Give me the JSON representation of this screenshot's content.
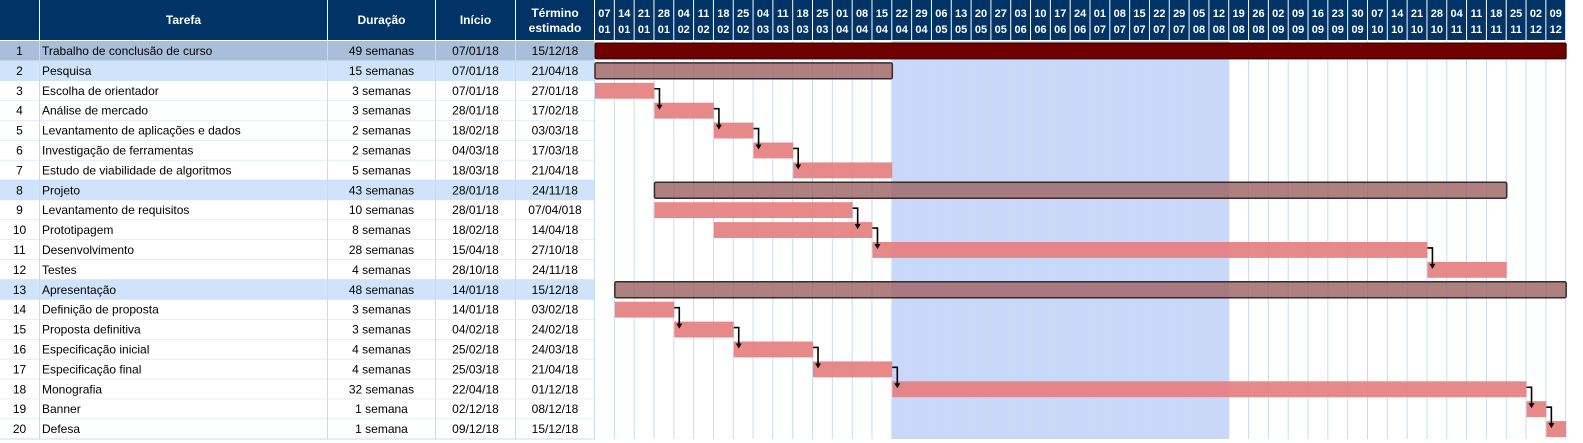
{
  "colors": {
    "header_bg": "#003366",
    "row_sel": "#a9bfd9",
    "row_summary": "#cfe3fa",
    "row_border": "#c9dcef",
    "grid_line": "#c7dcf0",
    "highlight": "#c9d8f9",
    "bar_task": "#e67f7f",
    "bar_summary": "#a06a6a",
    "bar_root": "#700000",
    "bar_outline": "#3b2a2a"
  },
  "headers": {
    "num": "",
    "task": "Tarefa",
    "duration": "Duração",
    "start": "Início",
    "end_line1": "Término",
    "end_line2": "estimado"
  },
  "rows": [
    {
      "id": "1",
      "name": "Trabalho de conclusão de curso",
      "duration": "49 semanas",
      "start": "07/01/18",
      "end": "15/12/18",
      "kind": "root"
    },
    {
      "id": "2",
      "name": "Pesquisa",
      "duration": "15 semanas",
      "start": "07/01/18",
      "end": "21/04/18",
      "kind": "summary"
    },
    {
      "id": "3",
      "name": "Escolha de orientador",
      "duration": "3 semanas",
      "start": "07/01/18",
      "end": "27/01/18",
      "kind": "task"
    },
    {
      "id": "4",
      "name": "Análise de mercado",
      "duration": "3 semanas",
      "start": "28/01/18",
      "end": "17/02/18",
      "kind": "task"
    },
    {
      "id": "5",
      "name": "Levantamento de aplicações e dados",
      "duration": "2 semanas",
      "start": "18/02/18",
      "end": "03/03/18",
      "kind": "task"
    },
    {
      "id": "6",
      "name": "Investigação de ferramentas",
      "duration": "2 semanas",
      "start": "04/03/18",
      "end": "17/03/18",
      "kind": "task"
    },
    {
      "id": "7",
      "name": "Estudo de viabilidade de algoritmos",
      "duration": "5 semanas",
      "start": "18/03/18",
      "end": "21/04/18",
      "kind": "task"
    },
    {
      "id": "8",
      "name": "Projeto",
      "duration": "43 semanas",
      "start": "28/01/18",
      "end": "24/11/18",
      "kind": "summary"
    },
    {
      "id": "9",
      "name": "Levantamento de requisitos",
      "duration": "10 semanas",
      "start": "28/01/18",
      "end": "07/04/018",
      "kind": "task"
    },
    {
      "id": "10",
      "name": "Prototipagem",
      "duration": "8 semanas",
      "start": "18/02/18",
      "end": "14/04/18",
      "kind": "task"
    },
    {
      "id": "11",
      "name": "Desenvolvimento",
      "duration": "28 semanas",
      "start": "15/04/18",
      "end": "27/10/18",
      "kind": "task"
    },
    {
      "id": "12",
      "name": "Testes",
      "duration": "4 semanas",
      "start": "28/10/18",
      "end": "24/11/18",
      "kind": "task"
    },
    {
      "id": "13",
      "name": "Apresentação",
      "duration": "48 semanas",
      "start": "14/01/18",
      "end": "15/12/18",
      "kind": "summary"
    },
    {
      "id": "14",
      "name": "Definição de proposta",
      "duration": "3 semanas",
      "start": "14/01/18",
      "end": "03/02/18",
      "kind": "task"
    },
    {
      "id": "15",
      "name": "Proposta definitiva",
      "duration": "3 semanas",
      "start": "04/02/18",
      "end": "24/02/18",
      "kind": "task"
    },
    {
      "id": "16",
      "name": "Especificação inicial",
      "duration": "4 semanas",
      "start": "25/02/18",
      "end": "24/03/18",
      "kind": "task"
    },
    {
      "id": "17",
      "name": "Especificação final",
      "duration": "4 semanas",
      "start": "25/03/18",
      "end": "21/04/18",
      "kind": "task"
    },
    {
      "id": "18",
      "name": "Monografia",
      "duration": "32 semanas",
      "start": "22/04/18",
      "end": "01/12/18",
      "kind": "task"
    },
    {
      "id": "19",
      "name": "Banner",
      "duration": "1 semana",
      "start": "02/12/18",
      "end": "08/12/18",
      "kind": "task"
    },
    {
      "id": "20",
      "name": "Defesa",
      "duration": "1 semana",
      "start": "09/12/18",
      "end": "15/12/18",
      "kind": "task"
    }
  ],
  "chart_data": {
    "type": "gantt",
    "x_ticks": [
      [
        "07",
        "01"
      ],
      [
        "14",
        "01"
      ],
      [
        "21",
        "01"
      ],
      [
        "28",
        "01"
      ],
      [
        "04",
        "02"
      ],
      [
        "11",
        "02"
      ],
      [
        "18",
        "02"
      ],
      [
        "25",
        "02"
      ],
      [
        "04",
        "03"
      ],
      [
        "11",
        "03"
      ],
      [
        "18",
        "03"
      ],
      [
        "25",
        "03"
      ],
      [
        "01",
        "04"
      ],
      [
        "08",
        "04"
      ],
      [
        "15",
        "04"
      ],
      [
        "22",
        "04"
      ],
      [
        "29",
        "04"
      ],
      [
        "06",
        "05"
      ],
      [
        "13",
        "05"
      ],
      [
        "20",
        "05"
      ],
      [
        "27",
        "05"
      ],
      [
        "03",
        "06"
      ],
      [
        "10",
        "06"
      ],
      [
        "17",
        "06"
      ],
      [
        "24",
        "06"
      ],
      [
        "01",
        "07"
      ],
      [
        "08",
        "07"
      ],
      [
        "15",
        "07"
      ],
      [
        "22",
        "07"
      ],
      [
        "29",
        "07"
      ],
      [
        "05",
        "08"
      ],
      [
        "12",
        "08"
      ],
      [
        "19",
        "08"
      ],
      [
        "26",
        "08"
      ],
      [
        "02",
        "09"
      ],
      [
        "09",
        "09"
      ],
      [
        "16",
        "09"
      ],
      [
        "23",
        "09"
      ],
      [
        "30",
        "09"
      ],
      [
        "07",
        "10"
      ],
      [
        "14",
        "10"
      ],
      [
        "21",
        "10"
      ],
      [
        "28",
        "10"
      ],
      [
        "04",
        "11"
      ],
      [
        "11",
        "11"
      ],
      [
        "18",
        "11"
      ],
      [
        "25",
        "11"
      ],
      [
        "02",
        "12"
      ],
      [
        "09",
        "12"
      ]
    ],
    "highlight_range": [
      "22/04/18",
      "18/08/18"
    ],
    "tasks": [
      {
        "id": "1",
        "start": "07/01/18",
        "end": "15/12/18",
        "kind": "root"
      },
      {
        "id": "2",
        "start": "07/01/18",
        "end": "21/04/18",
        "kind": "summary"
      },
      {
        "id": "3",
        "start": "07/01/18",
        "end": "27/01/18",
        "kind": "task"
      },
      {
        "id": "4",
        "start": "28/01/18",
        "end": "17/02/18",
        "kind": "task",
        "after": "3"
      },
      {
        "id": "5",
        "start": "18/02/18",
        "end": "03/03/18",
        "kind": "task",
        "after": "4"
      },
      {
        "id": "6",
        "start": "04/03/18",
        "end": "17/03/18",
        "kind": "task",
        "after": "5"
      },
      {
        "id": "7",
        "start": "18/03/18",
        "end": "21/04/18",
        "kind": "task",
        "after": "6"
      },
      {
        "id": "8",
        "start": "28/01/18",
        "end": "24/11/18",
        "kind": "summary"
      },
      {
        "id": "9",
        "start": "28/01/18",
        "end": "07/04/18",
        "kind": "task"
      },
      {
        "id": "10",
        "start": "18/02/18",
        "end": "14/04/18",
        "kind": "task",
        "after": "9"
      },
      {
        "id": "11",
        "start": "15/04/18",
        "end": "27/10/18",
        "kind": "task",
        "after": "10"
      },
      {
        "id": "12",
        "start": "28/10/18",
        "end": "24/11/18",
        "kind": "task",
        "after": "11"
      },
      {
        "id": "13",
        "start": "14/01/18",
        "end": "15/12/18",
        "kind": "summary"
      },
      {
        "id": "14",
        "start": "14/01/18",
        "end": "03/02/18",
        "kind": "task"
      },
      {
        "id": "15",
        "start": "04/02/18",
        "end": "24/02/18",
        "kind": "task",
        "after": "14"
      },
      {
        "id": "16",
        "start": "25/02/18",
        "end": "24/03/18",
        "kind": "task",
        "after": "15"
      },
      {
        "id": "17",
        "start": "25/03/18",
        "end": "21/04/18",
        "kind": "task",
        "after": "16"
      },
      {
        "id": "18",
        "start": "22/04/18",
        "end": "01/12/18",
        "kind": "task",
        "after": "17"
      },
      {
        "id": "19",
        "start": "02/12/18",
        "end": "08/12/18",
        "kind": "task",
        "after": "18"
      },
      {
        "id": "20",
        "start": "09/12/18",
        "end": "15/12/18",
        "kind": "task",
        "after": "19"
      }
    ]
  }
}
